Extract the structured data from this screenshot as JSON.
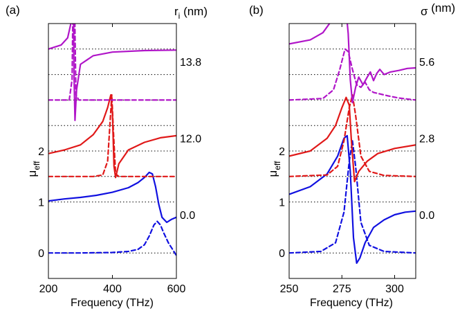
{
  "figure": {
    "panels": [
      {
        "label": "(a)",
        "param_label_main": "r",
        "param_label_sub": "i",
        "param_label_unit": " (nm)",
        "ylabel_main": "μ",
        "ylabel_sub": "eff",
        "xlabel": "Frequency (THz)",
        "yticks": [
          "0",
          "1",
          "2"
        ],
        "xticks": [
          "200",
          "400",
          "600"
        ],
        "offset_labels": [
          "0.0",
          "12.0",
          "13.8"
        ]
      },
      {
        "label": "(b)",
        "param_label_main": "σ",
        "param_label_sub": "",
        "param_label_unit": " (nm)",
        "ylabel_main": "μ",
        "ylabel_sub": "eff",
        "xlabel": "Frequency (THz)",
        "yticks": [
          "0",
          "1",
          "2"
        ],
        "xticks": [
          "250",
          "275",
          "300"
        ],
        "offset_labels": [
          "0.0",
          "2.8",
          "5.6"
        ]
      }
    ]
  },
  "chart_data": [
    {
      "type": "line",
      "title": "(a)",
      "xlabel": "Frequency (THz)",
      "ylabel": "μeff",
      "xlim": [
        200,
        600
      ],
      "ylim": [
        -0.5,
        4.5
      ],
      "parameter": "r_i (nm)",
      "offset_step": 1.5,
      "line_styles": {
        "real": "solid",
        "imag": "dashed"
      },
      "series": [
        {
          "name": "Re μeff, r_i = 0.0",
          "param": "0.0",
          "offset_index": 0,
          "part": "real",
          "color": "#1010e0",
          "x": [
            200,
            250,
            300,
            350,
            400,
            450,
            480,
            500,
            515,
            525,
            535,
            545,
            555,
            570,
            585,
            600
          ],
          "y": [
            1.02,
            1.06,
            1.09,
            1.13,
            1.19,
            1.28,
            1.38,
            1.48,
            1.58,
            1.55,
            1.3,
            0.95,
            0.7,
            0.6,
            0.66,
            0.7
          ]
        },
        {
          "name": "Im μeff, r_i = 0.0",
          "param": "0.0",
          "offset_index": 0,
          "part": "imag",
          "color": "#1010e0",
          "x": [
            200,
            300,
            400,
            450,
            480,
            500,
            515,
            530,
            540,
            550,
            560,
            575,
            590,
            600
          ],
          "y": [
            0,
            0,
            0.01,
            0.03,
            0.07,
            0.16,
            0.33,
            0.55,
            0.62,
            0.55,
            0.4,
            0.2,
            0.05,
            -0.05
          ]
        },
        {
          "name": "Re μeff, r_i = 12.0",
          "param": "12.0",
          "offset_index": 1,
          "part": "real",
          "color": "#e01818",
          "x": [
            200,
            250,
            300,
            340,
            370,
            385,
            395,
            400,
            405,
            410,
            420,
            450,
            500,
            550,
            600
          ],
          "y": [
            0.45,
            0.52,
            0.62,
            0.82,
            1.08,
            1.35,
            1.6,
            1.25,
            0.2,
            -0.02,
            0.25,
            0.52,
            0.67,
            0.76,
            0.8
          ]
        },
        {
          "name": "Im μeff, r_i = 12.0",
          "param": "12.0",
          "offset_index": 1,
          "part": "imag",
          "color": "#e01818",
          "x": [
            200,
            340,
            370,
            385,
            393,
            398,
            403,
            410,
            420,
            450,
            600
          ],
          "y": [
            0,
            0,
            0.03,
            0.3,
            1.1,
            1.6,
            0.9,
            0.05,
            0,
            0,
            0
          ]
        },
        {
          "name": "Re μeff, r_i = 13.8",
          "param": "13.8",
          "offset_index": 2,
          "part": "real",
          "color": "#b015c8",
          "x": [
            200,
            240,
            260,
            272,
            278,
            280,
            283,
            288,
            300,
            340,
            400,
            500,
            600
          ],
          "y": [
            1.0,
            1.08,
            1.22,
            1.55,
            1.9,
            0.5,
            -0.4,
            0.2,
            0.7,
            0.87,
            0.94,
            0.97,
            0.98
          ]
        },
        {
          "name": "Im μeff, r_i = 13.8",
          "param": "13.8",
          "offset_index": 2,
          "part": "imag",
          "color": "#b015c8",
          "x": [
            200,
            265,
            274,
            278,
            280,
            282,
            286,
            295,
            600
          ],
          "y": [
            0,
            0,
            0.4,
            2.6,
            3.0,
            1.8,
            0.1,
            0,
            0
          ]
        }
      ]
    },
    {
      "type": "line",
      "title": "(b)",
      "xlabel": "Frequency (THz)",
      "ylabel": "μeff",
      "xlim": [
        250,
        310
      ],
      "ylim": [
        -0.5,
        4.5
      ],
      "parameter": "σ (nm)",
      "offset_step": 1.5,
      "line_styles": {
        "real": "solid",
        "imag": "dashed"
      },
      "series": [
        {
          "name": "Re μeff, σ = 0.0",
          "param": "0.0",
          "offset_index": 0,
          "part": "real",
          "color": "#1010e0",
          "x": [
            250,
            260,
            268,
            273,
            276,
            277.5,
            279,
            280.5,
            282,
            283.5,
            286,
            290,
            295,
            300,
            305,
            310
          ],
          "y": [
            1.15,
            1.3,
            1.55,
            1.9,
            2.25,
            2.3,
            1.6,
            0.3,
            -0.2,
            -0.1,
            0.2,
            0.5,
            0.65,
            0.75,
            0.8,
            0.82
          ]
        },
        {
          "name": "Im μeff, σ = 0.0",
          "param": "0.0",
          "offset_index": 0,
          "part": "imag",
          "color": "#1010e0",
          "x": [
            250,
            265,
            272,
            276,
            278.5,
            280,
            281.5,
            284,
            288,
            295,
            310
          ],
          "y": [
            0,
            0.03,
            0.2,
            0.8,
            1.8,
            2.2,
            1.7,
            0.6,
            0.15,
            0.03,
            0
          ]
        },
        {
          "name": "Re μeff, σ = 2.8",
          "param": "2.8",
          "offset_index": 1,
          "part": "real",
          "color": "#e01818",
          "x": [
            250,
            260,
            268,
            272,
            275,
            277,
            278.5,
            279.5,
            281,
            283,
            287,
            292,
            300,
            310
          ],
          "y": [
            0.4,
            0.5,
            0.75,
            1.0,
            1.35,
            1.55,
            1.4,
            0.7,
            -0.1,
            0.1,
            0.3,
            0.45,
            0.55,
            0.62
          ]
        },
        {
          "name": "Im μeff, σ = 2.8",
          "param": "2.8",
          "offset_index": 1,
          "part": "imag",
          "color": "#e01818",
          "x": [
            250,
            268,
            273,
            276,
            278.5,
            280,
            281.5,
            284,
            288,
            295,
            310
          ],
          "y": [
            0,
            0.03,
            0.2,
            0.7,
            1.35,
            1.6,
            1.2,
            0.4,
            0.1,
            0.02,
            0
          ]
        },
        {
          "name": "Re μeff, σ = 5.6",
          "param": "5.6",
          "offset_index": 2,
          "part": "real",
          "color": "#b015c8",
          "x": [
            250,
            260,
            266,
            270,
            273,
            274.5,
            275.5,
            276.5,
            278,
            279,
            280,
            281.5,
            283,
            285,
            287,
            288.5,
            290,
            291.5,
            293,
            295,
            298,
            302,
            306,
            310
          ],
          "y": [
            1.1,
            1.18,
            1.32,
            1.55,
            1.82,
            1.95,
            1.85,
            1.98,
            1.3,
            0.4,
            -0.05,
            0.25,
            0.45,
            0.3,
            0.45,
            0.55,
            0.38,
            0.52,
            0.6,
            0.5,
            0.55,
            0.58,
            0.62,
            0.63
          ]
        },
        {
          "name": "Im μeff, σ = 5.6",
          "param": "5.6",
          "offset_index": 2,
          "part": "imag",
          "color": "#b015c8",
          "x": [
            250,
            266,
            271,
            274,
            276.5,
            278,
            280,
            282,
            284,
            286,
            288,
            290,
            293,
            297,
            302,
            310
          ],
          "y": [
            0,
            0.03,
            0.2,
            0.6,
            1.0,
            0.95,
            0.6,
            0.3,
            0.25,
            0.35,
            0.2,
            0.15,
            0.12,
            0.08,
            0.04,
            0
          ]
        }
      ]
    }
  ]
}
